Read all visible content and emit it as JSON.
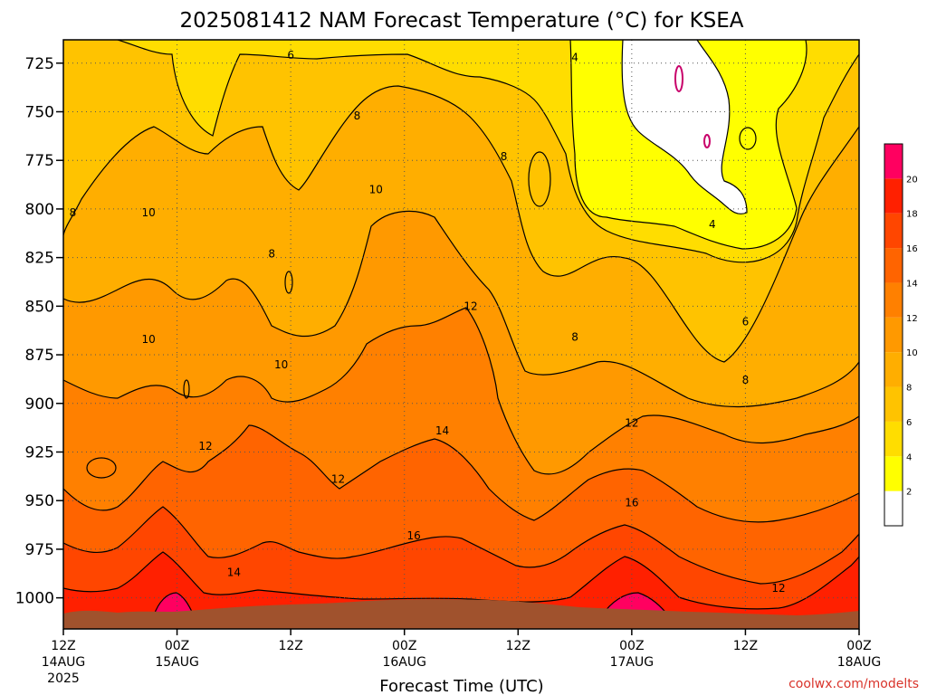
{
  "chart_data": {
    "type": "heatmap",
    "title": "2025081412 NAM Forecast Temperature (°C) for KSEA",
    "xlabel": "Forecast Time (UTC)",
    "ylabel": "",
    "credit": "coolwx.com/modelts",
    "y_ticks": [
      725,
      750,
      775,
      800,
      825,
      850,
      875,
      900,
      925,
      950,
      975,
      1000
    ],
    "y_range": [
      713,
      1016
    ],
    "x_range_hours": [
      0,
      84
    ],
    "x_ticks": [
      {
        "hour": 0,
        "lines": [
          "12Z",
          "14AUG",
          "2025"
        ]
      },
      {
        "hour": 12,
        "lines": [
          "00Z",
          "15AUG"
        ]
      },
      {
        "hour": 24,
        "lines": [
          "12Z"
        ]
      },
      {
        "hour": 36,
        "lines": [
          "00Z",
          "16AUG"
        ]
      },
      {
        "hour": 48,
        "lines": [
          "12Z"
        ]
      },
      {
        "hour": 60,
        "lines": [
          "00Z",
          "17AUG"
        ]
      },
      {
        "hour": 72,
        "lines": [
          "12Z"
        ]
      },
      {
        "hour": 84,
        "lines": [
          "00Z",
          "18AUG"
        ]
      }
    ],
    "colorbar": {
      "levels": [
        2,
        4,
        6,
        8,
        10,
        12,
        14,
        16,
        18,
        20
      ],
      "colors": [
        "#ffffff",
        "#ffff00",
        "#ffdd00",
        "#ffc300",
        "#ffae00",
        "#ff9900",
        "#ff8000",
        "#ff6400",
        "#ff4600",
        "#ff2000",
        "#ff0060"
      ]
    },
    "contour_labels": [
      {
        "text": "6",
        "hour": 24,
        "p": 721
      },
      {
        "text": "4",
        "hour": 54,
        "p": 722
      },
      {
        "text": "8",
        "hour": 31,
        "p": 752
      },
      {
        "text": "8",
        "hour": 46.5,
        "p": 773
      },
      {
        "text": "8",
        "hour": 1,
        "p": 802
      },
      {
        "text": "10",
        "hour": 9,
        "p": 802
      },
      {
        "text": "10",
        "hour": 33,
        "p": 790
      },
      {
        "text": "8",
        "hour": 22,
        "p": 823
      },
      {
        "text": "4",
        "hour": 68.5,
        "p": 808
      },
      {
        "text": "10",
        "hour": 9,
        "p": 867
      },
      {
        "text": "10",
        "hour": 23,
        "p": 880
      },
      {
        "text": "12",
        "hour": 43,
        "p": 850
      },
      {
        "text": "8",
        "hour": 54,
        "p": 866
      },
      {
        "text": "6",
        "hour": 72,
        "p": 858
      },
      {
        "text": "8",
        "hour": 72,
        "p": 888
      },
      {
        "text": "12",
        "hour": 15,
        "p": 922
      },
      {
        "text": "12",
        "hour": 29,
        "p": 939
      },
      {
        "text": "14",
        "hour": 40,
        "p": 914
      },
      {
        "text": "12",
        "hour": 60,
        "p": 910
      },
      {
        "text": "16",
        "hour": 37,
        "p": 968
      },
      {
        "text": "16",
        "hour": 60,
        "p": 951
      },
      {
        "text": "14",
        "hour": 18,
        "p": 987
      },
      {
        "text": "12",
        "hour": 75.5,
        "p": 995
      }
    ]
  }
}
